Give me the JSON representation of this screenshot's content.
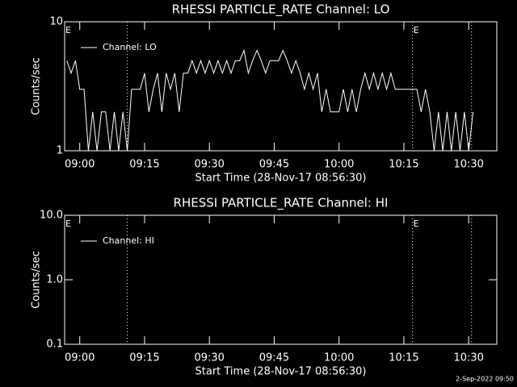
{
  "chart_data": [
    {
      "type": "line",
      "title": "RHESSI PARTICLE_RATE Channel: LO",
      "ylabel": "Counts/sec",
      "xlabel": "Start Time (28-Nov-17 08:56:30)",
      "xlim": [
        "08:56:30",
        "10:36:30"
      ],
      "xticks": [
        "09:00",
        "09:15",
        "09:30",
        "09:45",
        "10:00",
        "10:15",
        "10:30"
      ],
      "ylim": [
        1,
        10
      ],
      "yticks": [
        1,
        10
      ],
      "log_y": true,
      "vlines": [
        "09:11:00",
        "10:17:00",
        "10:30:40"
      ],
      "flags": [
        {
          "x": "08:56:30",
          "label": "E"
        },
        {
          "x": "10:17:00",
          "label": "E"
        }
      ],
      "series": [
        {
          "name": "Channel: LO",
          "color": "#ffffff",
          "x": [
            "08:57",
            "08:58",
            "08:59",
            "09:00",
            "09:01",
            "09:02",
            "09:03",
            "09:04",
            "09:05",
            "09:06",
            "09:07",
            "09:08",
            "09:09",
            "09:10",
            "09:11",
            "09:12",
            "09:13",
            "09:14",
            "09:15",
            "09:16",
            "09:17",
            "09:18",
            "09:19",
            "09:20",
            "09:21",
            "09:22",
            "09:23",
            "09:24",
            "09:25",
            "09:26",
            "09:27",
            "09:28",
            "09:29",
            "09:30",
            "09:31",
            "09:32",
            "09:33",
            "09:34",
            "09:35",
            "09:36",
            "09:37",
            "09:38",
            "09:39",
            "09:40",
            "09:41",
            "09:42",
            "09:43",
            "09:44",
            "09:45",
            "09:46",
            "09:47",
            "09:48",
            "09:49",
            "09:50",
            "09:51",
            "09:52",
            "09:53",
            "09:54",
            "09:55",
            "09:56",
            "09:57",
            "09:58",
            "09:59",
            "10:00",
            "10:01",
            "10:02",
            "10:03",
            "10:04",
            "10:05",
            "10:06",
            "10:07",
            "10:08",
            "10:09",
            "10:10",
            "10:11",
            "10:12",
            "10:13",
            "10:14",
            "10:15",
            "10:16",
            "10:17",
            "10:18",
            "10:19",
            "10:20",
            "10:21",
            "10:22",
            "10:23",
            "10:24",
            "10:25",
            "10:26",
            "10:27",
            "10:28",
            "10:29",
            "10:30",
            "10:31"
          ],
          "values": [
            5,
            4,
            5,
            3,
            3,
            1,
            2,
            1,
            2,
            2,
            1,
            2,
            1,
            2,
            1,
            3,
            3,
            3,
            4,
            2,
            3,
            4,
            2,
            4,
            3,
            4,
            2,
            4,
            4,
            5,
            4,
            5,
            4,
            5,
            4,
            5,
            4,
            5,
            4,
            5,
            5,
            6,
            4,
            5,
            6,
            5,
            4,
            5,
            5,
            5,
            6,
            5,
            4,
            5,
            4,
            3,
            4,
            3,
            4,
            2,
            3,
            2,
            2,
            2,
            3,
            2,
            3,
            2,
            3,
            4,
            3,
            4,
            3,
            4,
            3,
            4,
            3,
            3,
            3,
            3,
            3,
            3,
            2,
            3,
            2,
            1,
            2,
            1,
            2,
            1,
            2,
            1,
            2,
            1,
            2
          ]
        }
      ]
    },
    {
      "type": "line",
      "title": "RHESSI PARTICLE_RATE Channel: HI",
      "ylabel": "Counts/sec",
      "xlabel": "Start Time (28-Nov-17 08:56:30)",
      "xlim": [
        "08:56:30",
        "10:36:30"
      ],
      "xticks": [
        "09:00",
        "09:15",
        "09:30",
        "09:45",
        "10:00",
        "10:15",
        "10:30"
      ],
      "ylim": [
        0.1,
        10
      ],
      "yticks": [
        0.1,
        {
          "value": 1,
          "label": "1.0"
        },
        {
          "value": 10,
          "label": "10.0"
        }
      ],
      "log_y": true,
      "vlines": [
        "09:11:00",
        "10:17:00",
        "10:30:40"
      ],
      "flags": [
        {
          "x": "08:56:30",
          "label": "E"
        },
        {
          "x": "10:17:00",
          "label": "E"
        }
      ],
      "series": [
        {
          "name": "Channel: HI",
          "color": "#ffffff",
          "x": [],
          "values": []
        }
      ]
    }
  ],
  "footer": "2-Sep-2022 09:50"
}
